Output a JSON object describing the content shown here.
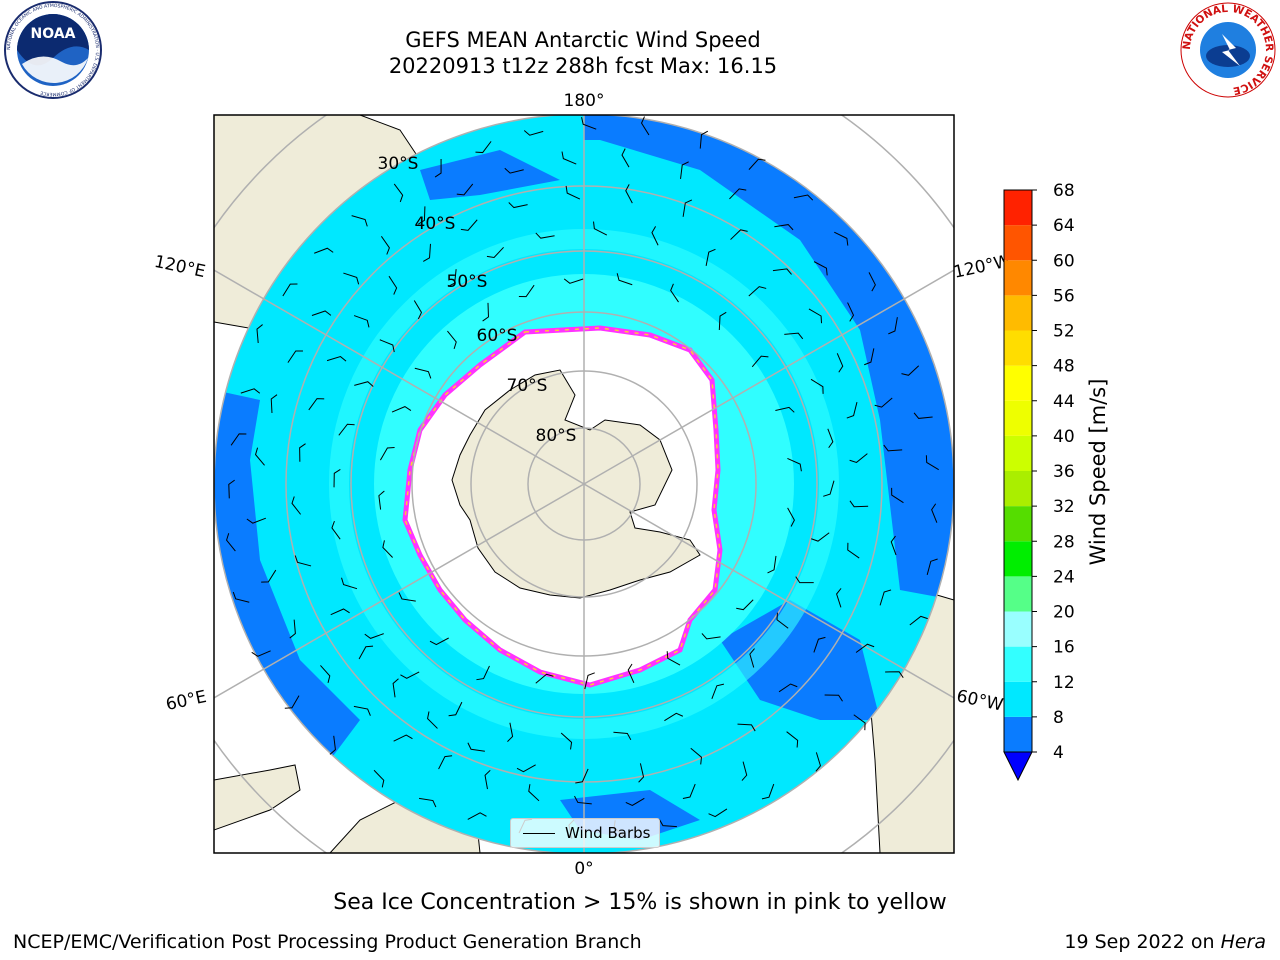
{
  "header": {
    "title_line1": "GEFS MEAN Antarctic Wind Speed",
    "title_line2": "20220913 t12z 288h fcst   Max: 16.15"
  },
  "logos": {
    "left": "NOAA",
    "right": "NATIONAL WEATHER SERVICE",
    "left_ring": "NATIONAL OCEANIC AND ATMOSPHERIC ADMINISTRATION · U.S. DEPARTMENT OF COMMERCE"
  },
  "map": {
    "projection": "south-polar-stereographic",
    "lon_labels": {
      "top": "180°",
      "bottom": "0°",
      "upper_left": "120°E",
      "upper_right": "120°W",
      "lower_left": "60°E",
      "lower_right": "60°W"
    },
    "lat_labels": [
      "30°S",
      "40°S",
      "50°S",
      "60°S",
      "70°S",
      "80°S"
    ],
    "land_color": "#efecd9",
    "sea_ice_colors": [
      "#ff33ff",
      "#ffcc33"
    ]
  },
  "legend": {
    "label": "Wind Barbs"
  },
  "colorbar": {
    "label": "Wind Speed [m/s]",
    "ticks": [
      "4",
      "8",
      "12",
      "16",
      "20",
      "24",
      "28",
      "32",
      "36",
      "40",
      "44",
      "48",
      "52",
      "56",
      "60",
      "64",
      "68"
    ],
    "colors": [
      "#0a7cff",
      "#00e8ff",
      "#33ffff",
      "#99ffff",
      "#55ff88",
      "#00ee00",
      "#55dd00",
      "#aaee00",
      "#ccff00",
      "#eeff00",
      "#ffff00",
      "#ffdd00",
      "#ffbb00",
      "#ff8800",
      "#ff5500",
      "#ff2200"
    ],
    "under_color": "#0000ff"
  },
  "caption": "Sea Ice Concentration > 15% is shown in pink to yellow",
  "footer": {
    "left": "NCEP/EMC/Verification Post Processing Product Generation Branch",
    "right_date": "19 Sep 2022 on ",
    "right_host": "Hera"
  }
}
